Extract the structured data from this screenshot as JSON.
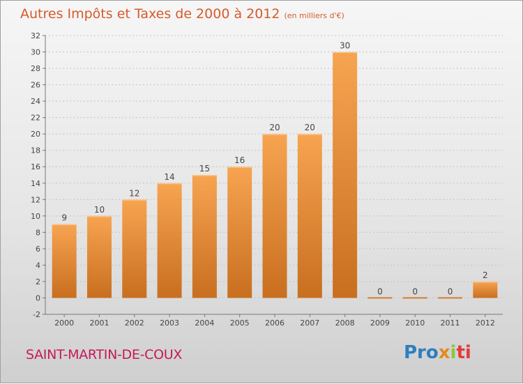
{
  "title": "Autres Impôts et Taxes de 2000 à 2012",
  "subtitle": "(en milliers d'€)",
  "city": "SAINT-MARTIN-DE-COUX",
  "logo": {
    "p1": "Pro",
    "p2": "x",
    "p3": "i",
    "p4": "ti"
  },
  "colors": {
    "bar_light": "#f7a451",
    "bar_dark": "#c86f1f",
    "title": "#d65a2b",
    "city": "#c6195a"
  },
  "chart_data": {
    "type": "bar",
    "categories": [
      "2000",
      "2001",
      "2002",
      "2003",
      "2004",
      "2005",
      "2006",
      "2007",
      "2008",
      "2009",
      "2010",
      "2011",
      "2012"
    ],
    "values": [
      9,
      10,
      12,
      14,
      15,
      16,
      20,
      20,
      30,
      0,
      0,
      0,
      2
    ],
    "value_labels": [
      "9",
      "10",
      "12",
      "14",
      "15",
      "16",
      "20",
      "20",
      "30",
      "0",
      "0",
      "0",
      "2"
    ],
    "ylim": [
      -2,
      32
    ],
    "yticks": [
      -2,
      0,
      2,
      4,
      6,
      8,
      10,
      12,
      14,
      16,
      18,
      20,
      22,
      24,
      26,
      28,
      30,
      32
    ],
    "grid": true
  }
}
